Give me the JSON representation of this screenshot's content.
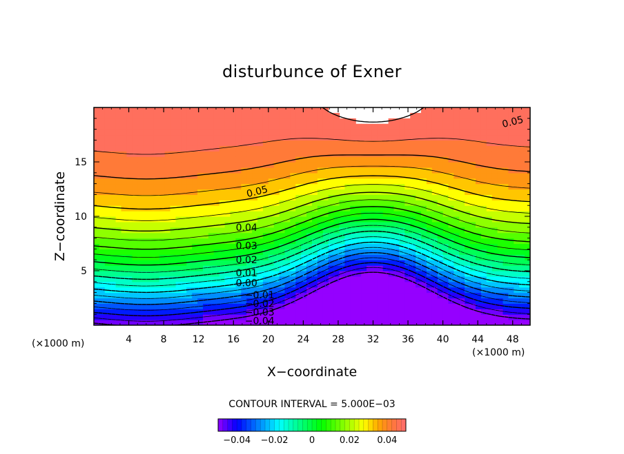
{
  "chart_data": {
    "type": "contour",
    "title": "disturbunce of Exner",
    "xlabel": "X−coordinate",
    "ylabel": "Z−coordinate",
    "x_unit_left": "(×1000 m)",
    "x_unit_right": "(×1000 m)",
    "xlim": [
      0,
      50
    ],
    "ylim": [
      0,
      20
    ],
    "xticks": [
      4,
      8,
      12,
      16,
      20,
      24,
      28,
      32,
      36,
      40,
      44,
      48
    ],
    "yticks": [
      5,
      10,
      15
    ],
    "contour_interval_text": "CONTOUR INTERVAL = 5.000E−03",
    "contour_interval": 0.005,
    "value_range": [
      -0.05,
      0.05
    ],
    "colorbar": {
      "range": [
        -0.05,
        0.05
      ],
      "ticks": [
        -0.04,
        -0.02,
        0,
        0.02,
        0.04
      ],
      "tick_labels": [
        "−0.04",
        "−0.02",
        "0",
        "0.02",
        "0.04"
      ]
    },
    "contour_labels": [
      {
        "text": "0.05",
        "x": 18.7,
        "z": 12.3
      },
      {
        "text": "0.05",
        "x": 48.0,
        "z": 18.7
      },
      {
        "text": "0.04",
        "x": 17.5,
        "z": 9.0
      },
      {
        "text": "0.03",
        "x": 17.5,
        "z": 7.3
      },
      {
        "text": "0.02",
        "x": 17.5,
        "z": 6.0
      },
      {
        "text": "0.01",
        "x": 17.5,
        "z": 4.8
      },
      {
        "text": "0.00",
        "x": 17.5,
        "z": 3.9
      },
      {
        "text": "−0.01",
        "x": 19.0,
        "z": 2.8
      },
      {
        "text": "−0.02",
        "x": 19.0,
        "z": 2.0
      },
      {
        "text": "−0.03",
        "x": 19.0,
        "z": 1.2
      },
      {
        "text": "−0.04",
        "x": 19.0,
        "z": 0.4
      }
    ],
    "field_note": "positive values solid contours, negative values dashed; values above 0.05 left blank (white)"
  }
}
